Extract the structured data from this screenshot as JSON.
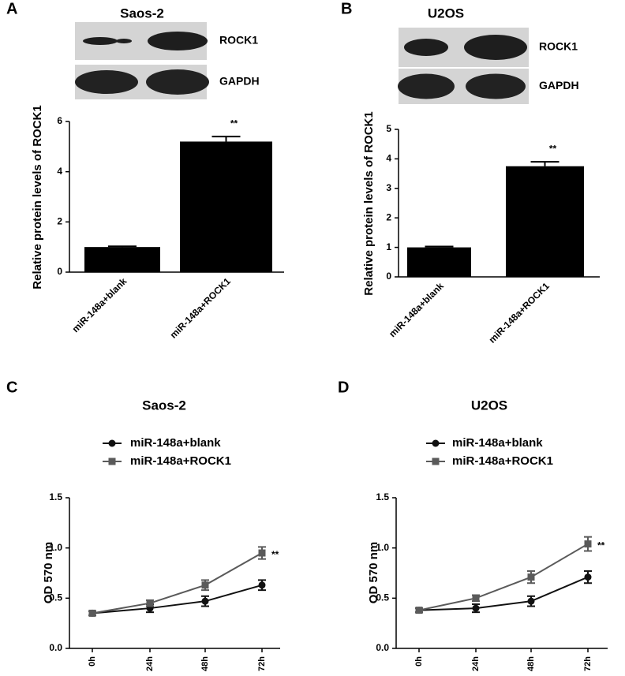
{
  "chart_data": [
    {
      "type": "bar",
      "panel": "A",
      "title": "Saos-2",
      "blots": [
        "ROCK1",
        "GAPDH"
      ],
      "ylabel": "Relative protein levels of ROCK1",
      "categories": [
        "miR-148a+blank",
        "miR-148a+ROCK1"
      ],
      "values": [
        1.0,
        5.2
      ],
      "errors": [
        0.03,
        0.2
      ],
      "color": "#000000",
      "ylim": [
        0,
        6
      ],
      "yticks": [
        0,
        2,
        4,
        6
      ],
      "annotation": "**"
    },
    {
      "type": "bar",
      "panel": "B",
      "title": "U2OS",
      "blots": [
        "ROCK1",
        "GAPDH"
      ],
      "ylabel": "Relative protein levels of ROCK1",
      "categories": [
        "miR-148a+blank",
        "miR-148a+ROCK1"
      ],
      "values": [
        1.0,
        3.75
      ],
      "errors": [
        0.03,
        0.15
      ],
      "color": "#000000",
      "ylim": [
        0,
        5
      ],
      "yticks": [
        0,
        1,
        2,
        3,
        4,
        5
      ],
      "annotation": "**"
    },
    {
      "type": "line",
      "panel": "C",
      "title": "Saos-2",
      "ylabel": "OD 570 nm",
      "categories": [
        "0h",
        "24h",
        "48h",
        "72h"
      ],
      "series": [
        {
          "name": "miR-148a+blank",
          "color": "#111111",
          "values": [
            0.35,
            0.4,
            0.47,
            0.63
          ],
          "errors": [
            0.02,
            0.04,
            0.05,
            0.05
          ]
        },
        {
          "name": "miR-148a+ROCK1",
          "color": "#5a5a5a",
          "values": [
            0.35,
            0.45,
            0.63,
            0.95
          ],
          "errors": [
            0.02,
            0.03,
            0.05,
            0.06
          ]
        }
      ],
      "ylim": [
        0,
        1.5
      ],
      "yticks": [
        {
          "value": 0,
          "label": "0.0"
        },
        0.5,
        {
          "value": 1,
          "label": "1.0"
        },
        1.5
      ],
      "annotation": "**"
    },
    {
      "type": "line",
      "panel": "D",
      "title": "U2OS",
      "ylabel": "OD 570 nm",
      "categories": [
        "0h",
        "24h",
        "48h",
        "72h"
      ],
      "series": [
        {
          "name": "miR-148a+blank",
          "color": "#111111",
          "values": [
            0.38,
            0.4,
            0.47,
            0.71
          ],
          "errors": [
            0.02,
            0.04,
            0.05,
            0.06
          ]
        },
        {
          "name": "miR-148a+ROCK1",
          "color": "#5a5a5a",
          "values": [
            0.38,
            0.5,
            0.71,
            1.04
          ],
          "errors": [
            0.02,
            0.03,
            0.06,
            0.07
          ]
        }
      ],
      "ylim": [
        0,
        1.5
      ],
      "yticks": [
        {
          "value": 0,
          "label": "0.0"
        },
        0.5,
        {
          "value": 1,
          "label": "1.0"
        },
        1.5
      ],
      "annotation": "**"
    }
  ]
}
